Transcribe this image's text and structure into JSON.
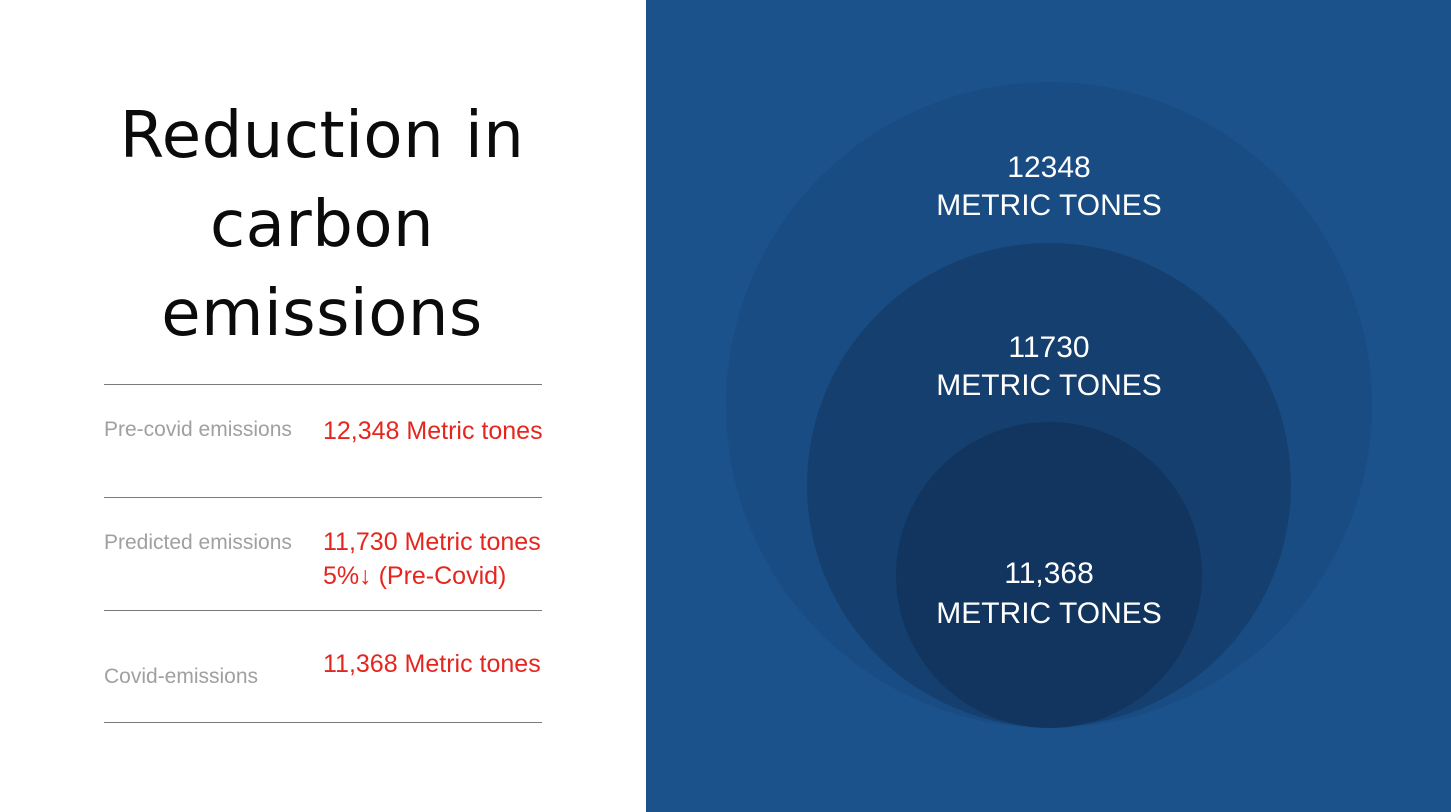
{
  "title": {
    "line1": "Reduction in",
    "line2": "carbon",
    "line3": "emissions"
  },
  "rows": [
    {
      "label": "Pre-covid emissions",
      "value": "12,348 Metric tones"
    },
    {
      "label": "Predicted emissions",
      "value": "11,730 Metric tones",
      "subvalue": "5%↓ (Pre-Covid)"
    },
    {
      "label": "Covid-emissions",
      "value": "11,368 Metric tones"
    }
  ],
  "circles": [
    {
      "value": "12348",
      "unit": "METRIC TONES"
    },
    {
      "value": "11730",
      "unit": "METRIC TONES"
    },
    {
      "value": "11,368",
      "unit": "METRIC TONES"
    }
  ],
  "colors": {
    "panel_bg": "#1b528c",
    "circle_outer": "#184c83",
    "circle_middle": "#153f6f",
    "circle_inner": "#11355e",
    "value_red": "#e5261f",
    "label_gray": "#a0a0a0"
  }
}
